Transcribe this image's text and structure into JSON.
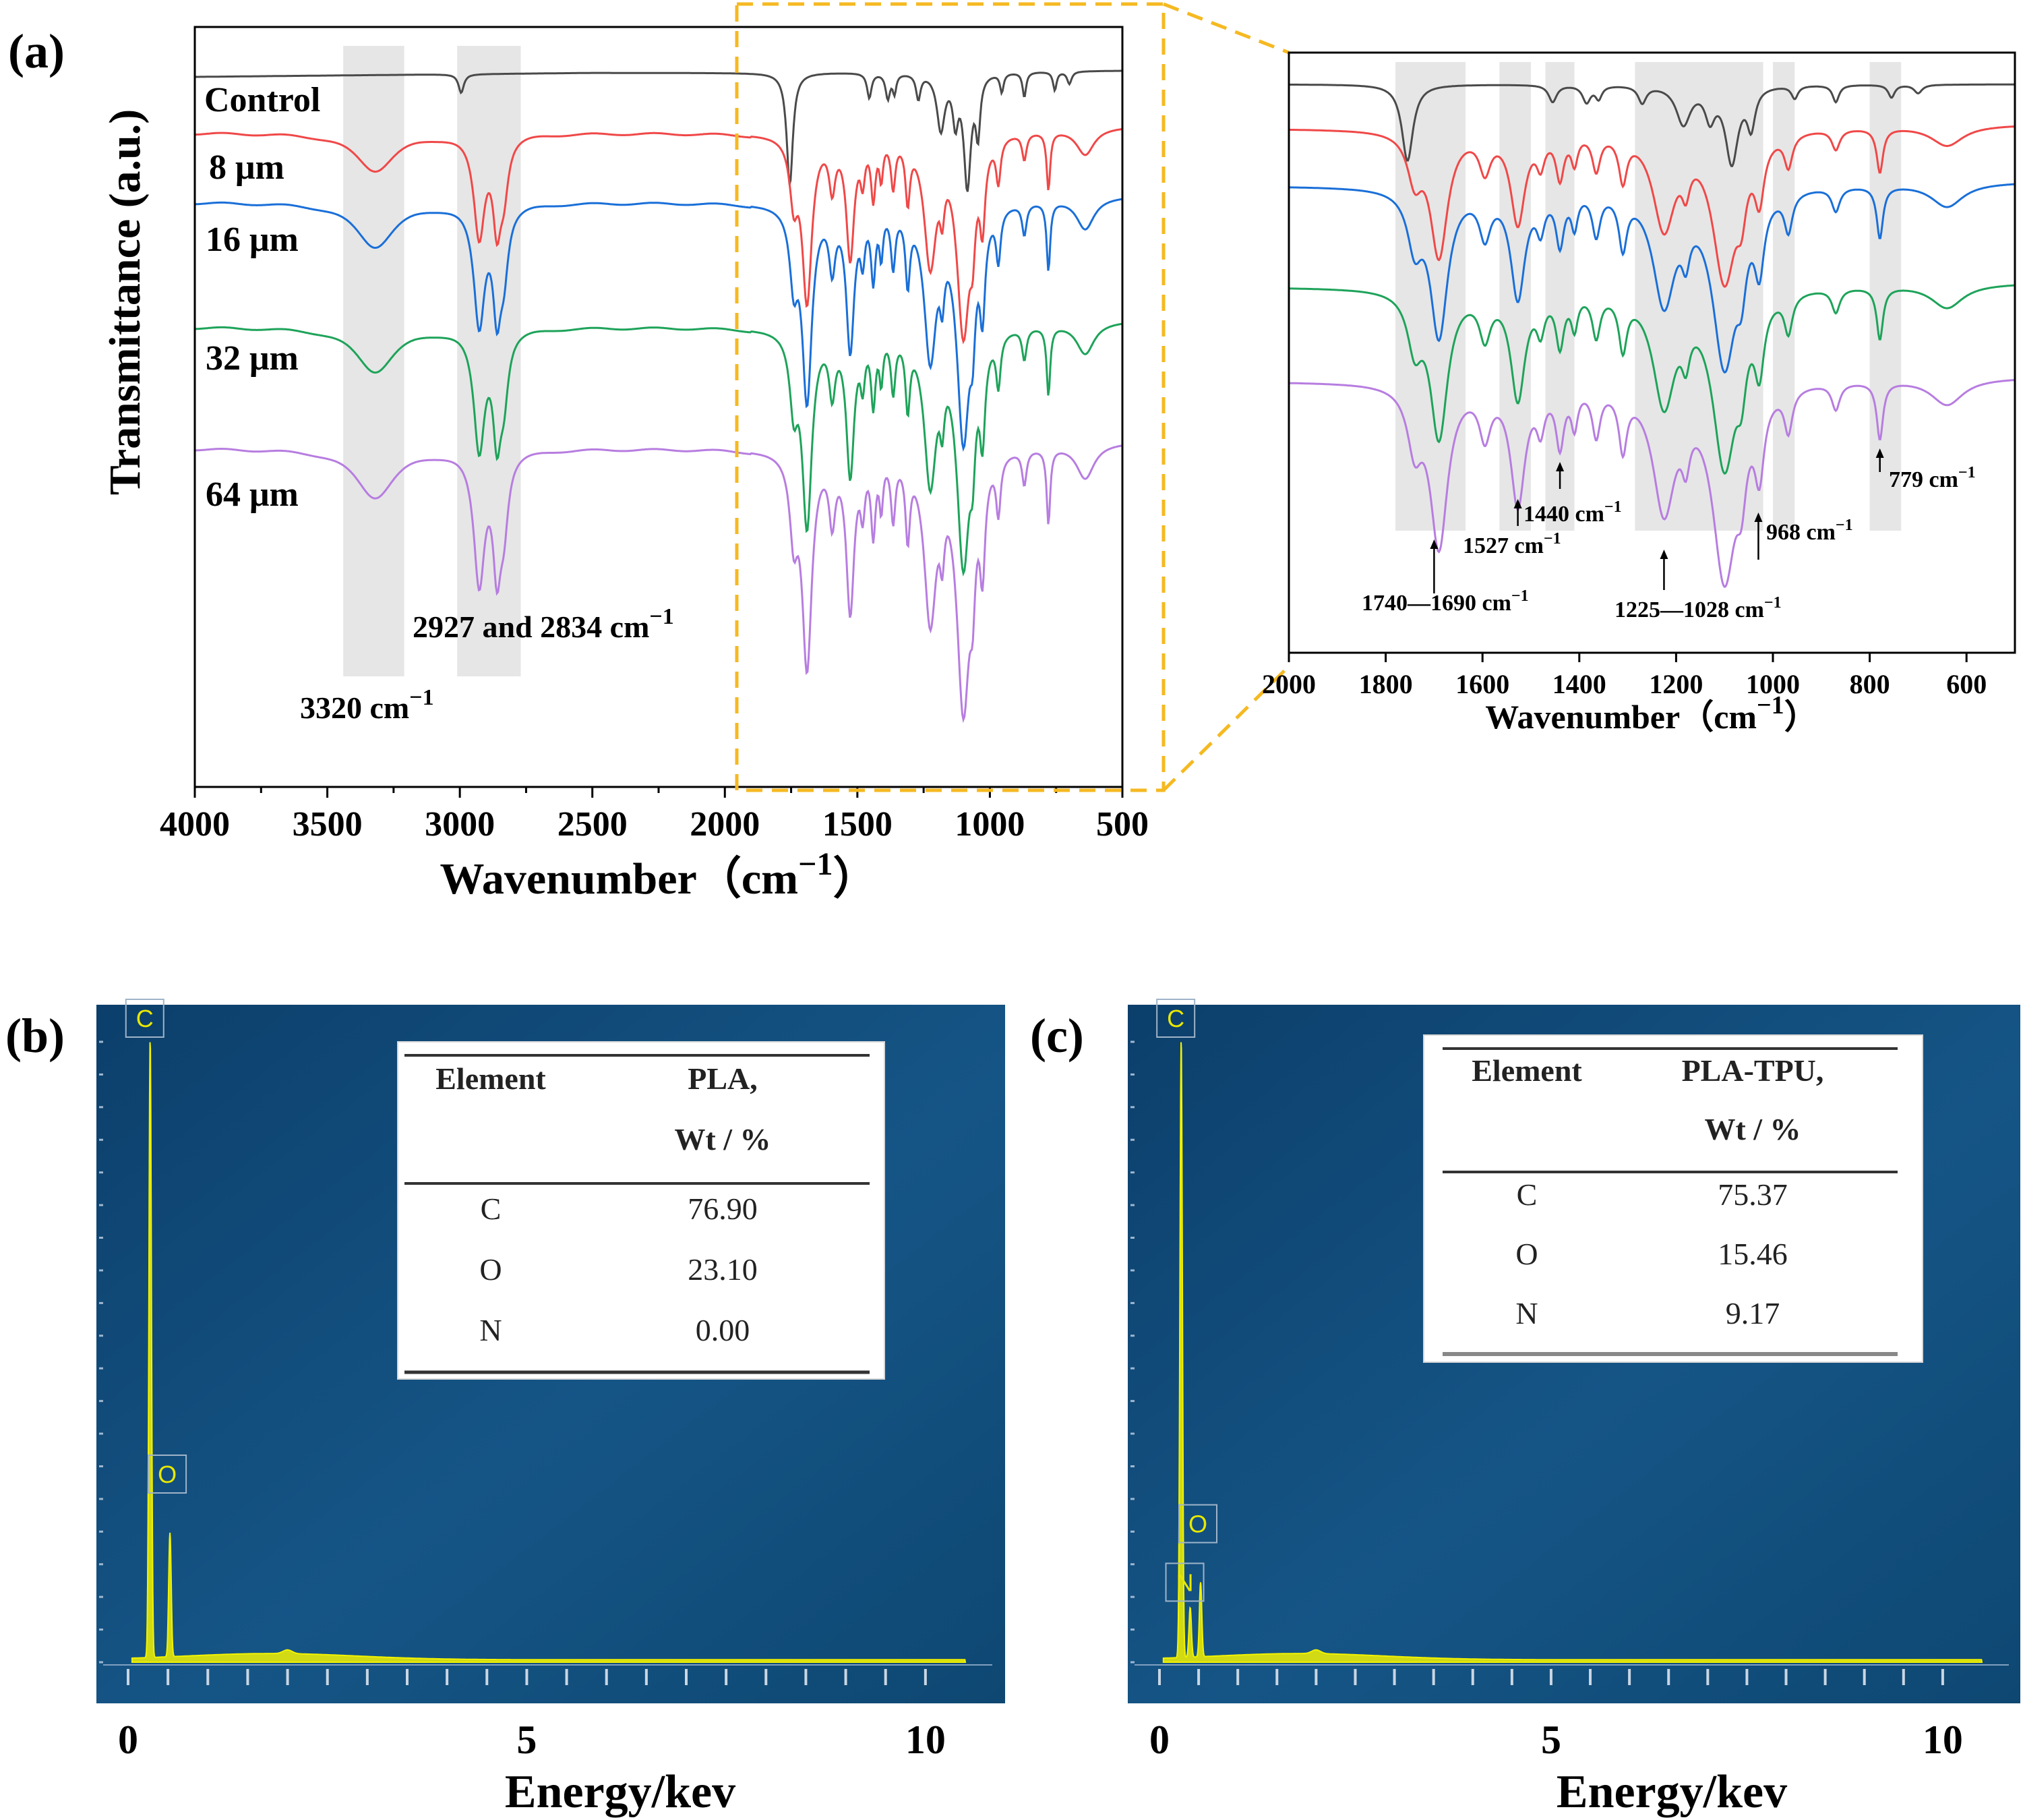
{
  "figure": {
    "panel_a_label": "(a)",
    "panel_b_label": "(b)",
    "panel_c_label": "(c)"
  },
  "colors": {
    "control": "#4a4a4a",
    "s8": "#f04848",
    "s16": "#1a6fd8",
    "s32": "#1ea35a",
    "s64": "#b77de0",
    "highlight_box": "#f5b921",
    "band": "#e6e6e6",
    "eds_bg": "#0f4674",
    "eds_trace": "#f2f200"
  },
  "chart_data": [
    {
      "id": "ftir_full",
      "type": "line",
      "title": "",
      "xlabel": "Wavenumber（cm",
      "xlabel_sup": "−1",
      "xlabel_close": "）",
      "ylabel": "Transmittance (a.u.)",
      "xlim": [
        4000,
        500
      ],
      "x_ticks": [
        "4000",
        "3500",
        "3000",
        "2500",
        "2000",
        "1500",
        "1000",
        "500"
      ],
      "x_tick_values": [
        4000,
        3500,
        3000,
        2500,
        2000,
        1500,
        1000,
        500
      ],
      "series": [
        {
          "name": "Control",
          "offset": 0,
          "peak_scale": 0.35,
          "color_key": "control"
        },
        {
          "name": "8 μm",
          "offset": 1,
          "peak_scale": 0.85,
          "color_key": "s8"
        },
        {
          "name": "16 μm",
          "offset": 2,
          "peak_scale": 1.0,
          "color_key": "s16"
        },
        {
          "name": "32 μm",
          "offset": 3,
          "peak_scale": 1.0,
          "color_key": "s32"
        },
        {
          "name": "64 μm",
          "offset": 4,
          "peak_scale": 1.1,
          "color_key": "s64"
        }
      ],
      "bands": [
        {
          "from": 3440,
          "to": 3210
        },
        {
          "from": 3010,
          "to": 2770
        }
      ],
      "annotations": {
        "band_3320": "3320 cm",
        "band_3320_sup": "−1",
        "band_2900": "2927 and 2834 cm",
        "band_2900_sup": "−1"
      },
      "zoom_range": [
        1950,
        500
      ]
    },
    {
      "id": "ftir_zoom",
      "type": "line",
      "xlabel": "Wavenumber（cm",
      "xlabel_sup": "−1",
      "xlabel_close": "）",
      "xlim": [
        2000,
        500
      ],
      "x_ticks": [
        "2000",
        "1800",
        "1600",
        "1400",
        "1200",
        "1000",
        "800",
        "600"
      ],
      "x_tick_values": [
        2000,
        1800,
        1600,
        1400,
        1200,
        1000,
        800,
        600
      ],
      "bands": [
        {
          "from": 1780,
          "to": 1635
        },
        {
          "from": 1565,
          "to": 1500
        },
        {
          "from": 1470,
          "to": 1410
        },
        {
          "from": 1285,
          "to": 1020
        },
        {
          "from": 1000,
          "to": 955
        },
        {
          "from": 800,
          "to": 735
        }
      ],
      "annotations": [
        {
          "text": "1740—1690 cm",
          "sup": "−1",
          "x": 1700
        },
        {
          "text": "1527 cm",
          "sup": "−1",
          "x": 1527
        },
        {
          "text": "1440 cm",
          "sup": "−1",
          "x": 1440
        },
        {
          "text": "1225—1028 cm",
          "sup": "−1",
          "x": 1225
        },
        {
          "text": "968 cm",
          "sup": "−1",
          "x": 968
        },
        {
          "text": "779 cm",
          "sup": "−1",
          "x": 779
        }
      ]
    },
    {
      "id": "eds_pla",
      "type": "line",
      "xlabel": "Energy/kev",
      "xlim": [
        0,
        10.5
      ],
      "x_ticks": [
        "0",
        "5",
        "10"
      ],
      "x_tick_values": [
        0,
        5,
        10
      ],
      "peaks": [
        {
          "element": "C",
          "energy": 0.277,
          "height": 1.0
        },
        {
          "element": "O",
          "energy": 0.525,
          "height": 0.2
        }
      ],
      "table": {
        "col1_header": "Element",
        "col2_header_line1": "PLA,",
        "col2_header_line2": "Wt / %",
        "rows": [
          {
            "element": "C",
            "value": "76.90"
          },
          {
            "element": "O",
            "value": "23.10"
          },
          {
            "element": "N",
            "value": "0.00"
          }
        ]
      }
    },
    {
      "id": "eds_pla_tpu",
      "type": "line",
      "xlabel": "Energy/kev",
      "xlim": [
        0,
        10.5
      ],
      "x_ticks": [
        "0",
        "5",
        "10"
      ],
      "x_tick_values": [
        0,
        5,
        10
      ],
      "peaks": [
        {
          "element": "C",
          "energy": 0.277,
          "height": 1.0
        },
        {
          "element": "N",
          "energy": 0.392,
          "height": 0.08
        },
        {
          "element": "O",
          "energy": 0.525,
          "height": 0.12
        }
      ],
      "table": {
        "col1_header": "Element",
        "col2_header_line1": "PLA-TPU,",
        "col2_header_line2": "Wt / %",
        "rows": [
          {
            "element": "C",
            "value": "75.37"
          },
          {
            "element": "O",
            "value": "15.46"
          },
          {
            "element": "N",
            "value": "9.17"
          }
        ]
      }
    }
  ]
}
